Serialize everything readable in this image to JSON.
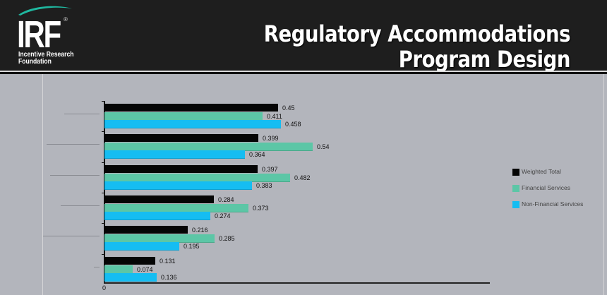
{
  "header": {
    "logo": {
      "mark": "IRF",
      "registered": "®",
      "line1": "Incentive Research",
      "line2": "Foundation",
      "swoosh_color": "#1fb8a0"
    },
    "title_line1": "Regulatory Accommodations",
    "title_line2": "Program Design"
  },
  "colors": {
    "header_bg": "#1e1e1e",
    "panel_bg": "#b3b5bc",
    "weighted_total": "#050505",
    "financial_services": "#5cc6a6",
    "non_financial_services": "#15bdf2"
  },
  "chart_data": {
    "type": "bar",
    "orientation": "horizontal",
    "title": "",
    "xlabel": "",
    "ylabel": "",
    "categories": [
      "Category 1 (label illegible)",
      "Category 2 (label illegible)",
      "Category 3 (label illegible)",
      "Category 4 (label illegible)",
      "Category 5 (label illegible)",
      "Category 6 (label illegible)"
    ],
    "series": [
      {
        "name": "Weighted Total",
        "color": "#050505",
        "values": [
          0.45,
          0.399,
          0.397,
          0.284,
          0.216,
          0.131
        ]
      },
      {
        "name": "Financial Services",
        "color": "#5cc6a6",
        "values": [
          0.411,
          0.54,
          0.482,
          0.373,
          0.285,
          0.074
        ]
      },
      {
        "name": "Non-Financial Services",
        "color": "#15bdf2",
        "values": [
          0.458,
          0.364,
          0.383,
          0.274,
          0.195,
          0.136
        ]
      }
    ],
    "value_labels": [
      [
        "0.45",
        "0.411",
        "0.458"
      ],
      [
        "0.399",
        "0.54",
        "0.364"
      ],
      [
        "0.397",
        "0.482",
        "0.383"
      ],
      [
        "0.284",
        "0.373",
        "0.274"
      ],
      [
        "0.216",
        "0.285",
        "0.195"
      ],
      [
        "0.131",
        "0.074",
        "0.136"
      ]
    ],
    "x_ticks": [
      "0"
    ],
    "xlim": [
      0,
      1.0
    ],
    "grid": false,
    "legend_position": "right",
    "legend": [
      "Weighted Total",
      "Financial Services",
      "Non-Financial Services"
    ]
  }
}
